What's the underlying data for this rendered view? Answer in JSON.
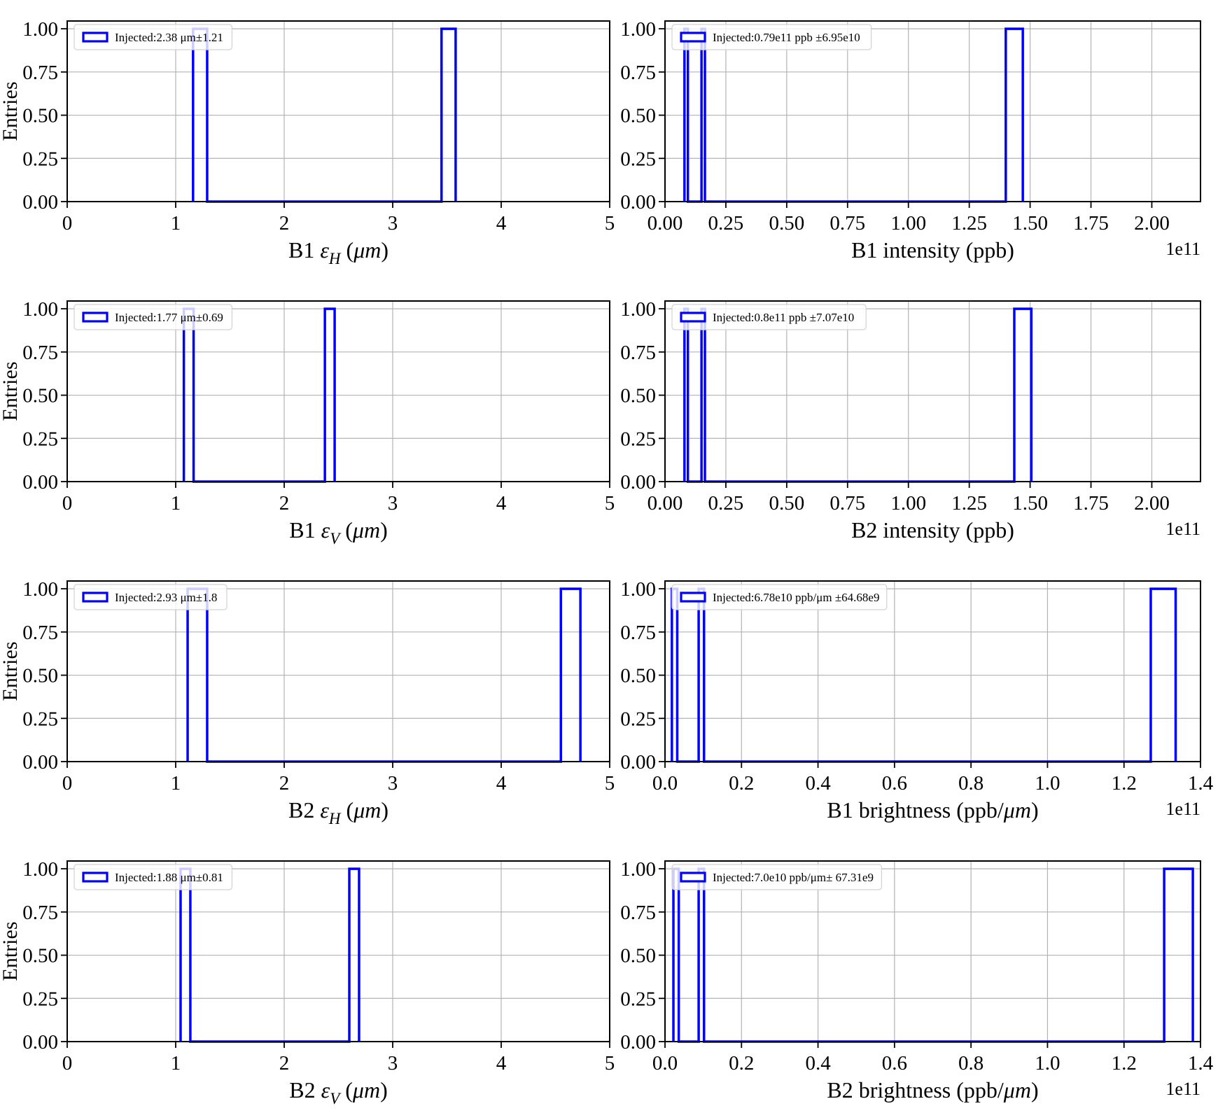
{
  "figure_title": "",
  "style": {
    "background": "#ffffff",
    "histogram_color": "#0000ff",
    "grid_color": "#b3b3b3",
    "spine_color": "#000000",
    "legend_border": "#d2d2d2",
    "legend_background_alpha": 0.8
  },
  "chart_data": [
    {
      "id": "b1-emittance-h",
      "type": "bar",
      "subtype": "step-histogram",
      "xlabel": "B1 εH (μm)",
      "xlabel_parts": [
        {
          "t": "B1 "
        },
        {
          "t": "ε",
          "it": true
        },
        {
          "t": "H",
          "it": true,
          "sub": true
        },
        {
          "t": " ("
        },
        {
          "t": "μm",
          "it": true
        },
        {
          "t": ")"
        }
      ],
      "ylabel": "Entries",
      "legend": "Injected:2.38 μm±1.21",
      "legend_position": "upper left",
      "grid": true,
      "xlim": [
        0,
        5
      ],
      "ylim": [
        0,
        1.045
      ],
      "xticks": {
        "values": [
          0,
          1,
          2,
          3,
          4,
          5
        ],
        "labels": [
          "0",
          "1",
          "2",
          "3",
          "4",
          "5"
        ]
      },
      "yticks": {
        "values": [
          0,
          0.25,
          0.5,
          0.75,
          1.0
        ],
        "labels": [
          "0.00",
          "0.25",
          "0.50",
          "0.75",
          "1.00"
        ]
      },
      "offset_text": "",
      "bars": [
        {
          "x0": 1.16,
          "x1": 1.29,
          "height": 1.0
        },
        {
          "x0": 3.45,
          "x1": 3.58,
          "height": 1.0
        }
      ]
    },
    {
      "id": "b1-intensity",
      "type": "bar",
      "subtype": "step-histogram",
      "xlabel": "B1 intensity (ppb)",
      "xlabel_parts": [
        {
          "t": "B1 intensity (ppb)"
        }
      ],
      "ylabel": "",
      "legend": "Injected:0.79e11 ppb ±6.95e10",
      "legend_position": "upper left",
      "grid": true,
      "xlim": [
        0,
        2.2
      ],
      "ylim": [
        0,
        1.045
      ],
      "xticks": {
        "values": [
          0,
          0.25,
          0.5,
          0.75,
          1.0,
          1.25,
          1.5,
          1.75,
          2.0
        ],
        "labels": [
          "0.00",
          "0.25",
          "0.50",
          "0.75",
          "1.00",
          "1.25",
          "1.50",
          "1.75",
          "2.00"
        ]
      },
      "yticks": {
        "values": [
          0,
          0.25,
          0.5,
          0.75,
          1.0
        ],
        "labels": [
          "0.00",
          "0.25",
          "0.50",
          "0.75",
          "1.00"
        ]
      },
      "offset_text": "1e11",
      "bars": [
        {
          "x0": 0.08,
          "x1": 0.094,
          "height": 1.0
        },
        {
          "x0": 0.15,
          "x1": 0.164,
          "height": 1.0
        },
        {
          "x0": 1.4,
          "x1": 1.47,
          "height": 1.0
        }
      ]
    },
    {
      "id": "b1-emittance-v",
      "type": "bar",
      "subtype": "step-histogram",
      "xlabel": "B1 εV (μm)",
      "xlabel_parts": [
        {
          "t": "B1 "
        },
        {
          "t": "ε",
          "it": true
        },
        {
          "t": "V",
          "it": true,
          "sub": true
        },
        {
          "t": " ("
        },
        {
          "t": "μm",
          "it": true
        },
        {
          "t": ")"
        }
      ],
      "ylabel": "Entries",
      "legend": "Injected:1.77 μm±0.69",
      "legend_position": "upper left",
      "grid": true,
      "xlim": [
        0,
        5
      ],
      "ylim": [
        0,
        1.045
      ],
      "xticks": {
        "values": [
          0,
          1,
          2,
          3,
          4,
          5
        ],
        "labels": [
          "0",
          "1",
          "2",
          "3",
          "4",
          "5"
        ]
      },
      "yticks": {
        "values": [
          0,
          0.25,
          0.5,
          0.75,
          1.0
        ],
        "labels": [
          "0.00",
          "0.25",
          "0.50",
          "0.75",
          "1.00"
        ]
      },
      "offset_text": "",
      "bars": [
        {
          "x0": 1.075,
          "x1": 1.165,
          "height": 1.0
        },
        {
          "x0": 2.375,
          "x1": 2.465,
          "height": 1.0
        }
      ]
    },
    {
      "id": "b2-intensity",
      "type": "bar",
      "subtype": "step-histogram",
      "xlabel": "B2 intensity (ppb)",
      "xlabel_parts": [
        {
          "t": "B2 intensity (ppb)"
        }
      ],
      "ylabel": "",
      "legend": "Injected:0.8e11 ppb ±7.07e10",
      "legend_position": "upper left",
      "grid": true,
      "xlim": [
        0,
        2.2
      ],
      "ylim": [
        0,
        1.045
      ],
      "xticks": {
        "values": [
          0,
          0.25,
          0.5,
          0.75,
          1.0,
          1.25,
          1.5,
          1.75,
          2.0
        ],
        "labels": [
          "0.00",
          "0.25",
          "0.50",
          "0.75",
          "1.00",
          "1.25",
          "1.50",
          "1.75",
          "2.00"
        ]
      },
      "yticks": {
        "values": [
          0,
          0.25,
          0.5,
          0.75,
          1.0
        ],
        "labels": [
          "0.00",
          "0.25",
          "0.50",
          "0.75",
          "1.00"
        ]
      },
      "offset_text": "1e11",
      "bars": [
        {
          "x0": 0.08,
          "x1": 0.094,
          "height": 1.0
        },
        {
          "x0": 0.15,
          "x1": 0.164,
          "height": 1.0
        },
        {
          "x0": 1.435,
          "x1": 1.505,
          "height": 1.0
        }
      ]
    },
    {
      "id": "b2-emittance-h",
      "type": "bar",
      "subtype": "step-histogram",
      "xlabel": "B2 εH (μm)",
      "xlabel_parts": [
        {
          "t": "B2 "
        },
        {
          "t": "ε",
          "it": true
        },
        {
          "t": "H",
          "it": true,
          "sub": true
        },
        {
          "t": " ("
        },
        {
          "t": "μm",
          "it": true
        },
        {
          "t": ")"
        }
      ],
      "ylabel": "Entries",
      "legend": "Injected:2.93 μm±1.8",
      "legend_position": "upper left",
      "grid": true,
      "xlim": [
        0,
        5
      ],
      "ylim": [
        0,
        1.045
      ],
      "xticks": {
        "values": [
          0,
          1,
          2,
          3,
          4,
          5
        ],
        "labels": [
          "0",
          "1",
          "2",
          "3",
          "4",
          "5"
        ]
      },
      "yticks": {
        "values": [
          0,
          0.25,
          0.5,
          0.75,
          1.0
        ],
        "labels": [
          "0.00",
          "0.25",
          "0.50",
          "0.75",
          "1.00"
        ]
      },
      "offset_text": "",
      "bars": [
        {
          "x0": 1.11,
          "x1": 1.29,
          "height": 1.0
        },
        {
          "x0": 4.55,
          "x1": 4.73,
          "height": 1.0
        }
      ]
    },
    {
      "id": "b1-brightness",
      "type": "bar",
      "subtype": "step-histogram",
      "xlabel": "B1 brightness (ppb/μm)",
      "xlabel_parts": [
        {
          "t": "B1 brightness (ppb/"
        },
        {
          "t": "μm",
          "it": true
        },
        {
          "t": ")"
        }
      ],
      "ylabel": "",
      "legend": "Injected:6.78e10 ppb/μm ±64.68e9",
      "legend_position": "upper left",
      "grid": true,
      "xlim": [
        0,
        1.4
      ],
      "ylim": [
        0,
        1.045
      ],
      "xticks": {
        "values": [
          0,
          0.2,
          0.4,
          0.6,
          0.8,
          1.0,
          1.2,
          1.4
        ],
        "labels": [
          "0.0",
          "0.2",
          "0.4",
          "0.6",
          "0.8",
          "1.0",
          "1.2",
          "1.4"
        ]
      },
      "yticks": {
        "values": [
          0,
          0.25,
          0.5,
          0.75,
          1.0
        ],
        "labels": [
          "0.00",
          "0.25",
          "0.50",
          "0.75",
          "1.00"
        ]
      },
      "offset_text": "1e11",
      "bars": [
        {
          "x0": 0.018,
          "x1": 0.032,
          "height": 1.0
        },
        {
          "x0": 0.088,
          "x1": 0.102,
          "height": 1.0
        },
        {
          "x0": 1.27,
          "x1": 1.335,
          "height": 1.0
        }
      ]
    },
    {
      "id": "b2-emittance-v",
      "type": "bar",
      "subtype": "step-histogram",
      "xlabel": "B2 εV (μm)",
      "xlabel_parts": [
        {
          "t": "B2 "
        },
        {
          "t": "ε",
          "it": true
        },
        {
          "t": "V",
          "it": true,
          "sub": true
        },
        {
          "t": " ("
        },
        {
          "t": "μm",
          "it": true
        },
        {
          "t": ")"
        }
      ],
      "ylabel": "Entries",
      "legend": "Injected:1.88 μm±0.81",
      "legend_position": "upper left",
      "grid": true,
      "xlim": [
        0,
        5
      ],
      "ylim": [
        0,
        1.045
      ],
      "xticks": {
        "values": [
          0,
          1,
          2,
          3,
          4,
          5
        ],
        "labels": [
          "0",
          "1",
          "2",
          "3",
          "4",
          "5"
        ]
      },
      "yticks": {
        "values": [
          0,
          0.25,
          0.5,
          0.75,
          1.0
        ],
        "labels": [
          "0.00",
          "0.25",
          "0.50",
          "0.75",
          "1.00"
        ]
      },
      "offset_text": "",
      "bars": [
        {
          "x0": 1.045,
          "x1": 1.135,
          "height": 1.0
        },
        {
          "x0": 2.6,
          "x1": 2.69,
          "height": 1.0
        }
      ]
    },
    {
      "id": "b2-brightness",
      "type": "bar",
      "subtype": "step-histogram",
      "xlabel": "B2 brightness (ppb/μm)",
      "xlabel_parts": [
        {
          "t": "B2 brightness (ppb/"
        },
        {
          "t": "μm",
          "it": true
        },
        {
          "t": ")"
        }
      ],
      "ylabel": "",
      "legend": "Injected:7.0e10 ppb/μm± 67.31e9",
      "legend_position": "upper left",
      "grid": true,
      "xlim": [
        0,
        1.4
      ],
      "ylim": [
        0,
        1.045
      ],
      "xticks": {
        "values": [
          0,
          0.2,
          0.4,
          0.6,
          0.8,
          1.0,
          1.2,
          1.4
        ],
        "labels": [
          "0.0",
          "0.2",
          "0.4",
          "0.6",
          "0.8",
          "1.0",
          "1.2",
          "1.4"
        ]
      },
      "yticks": {
        "values": [
          0,
          0.25,
          0.5,
          0.75,
          1.0
        ],
        "labels": [
          "0.00",
          "0.25",
          "0.50",
          "0.75",
          "1.00"
        ]
      },
      "offset_text": "1e11",
      "bars": [
        {
          "x0": 0.022,
          "x1": 0.036,
          "height": 1.0
        },
        {
          "x0": 0.088,
          "x1": 0.102,
          "height": 1.0
        },
        {
          "x0": 1.305,
          "x1": 1.38,
          "height": 1.0
        }
      ]
    }
  ]
}
